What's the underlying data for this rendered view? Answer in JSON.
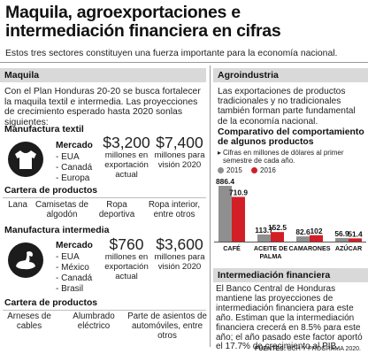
{
  "header": {
    "title": "Maquila, agroexportaciones e intermediación financiera en cifras",
    "subtitle": "Estos tres sectores constituyen una fuerza importante para la economía nacional."
  },
  "maquila": {
    "section_title": "Maquila",
    "intro": "Con el Plan Honduras 20-20 se busca fortalecer la maquila textil e intermedia. Las proyecciones de crecimiento esperado hasta 2020 sonlas siguientes:",
    "textil": {
      "heading": "Manufactura textil",
      "icon": "t-shirt-icon",
      "mercado_label": "Mercado",
      "mercado": [
        "- EUA",
        "- Canadá",
        "- Europa"
      ],
      "stat1_value": "$3,200",
      "stat1_caption": "millones en exportación actual",
      "stat2_value": "$7,400",
      "stat2_caption": "millones para visión 2020",
      "cartera_heading": "Cartera de productos",
      "products": [
        "Lana",
        "Camisetas de algodón",
        "Ropa deportiva",
        "Ropa interior, entre otros"
      ]
    },
    "intermedia": {
      "heading": "Manufactura intermedia",
      "icon": "arm-muscle-icon",
      "mercado_label": "Mercado",
      "mercado": [
        "- EUA",
        "- México",
        "- Canadá",
        "- Brasil"
      ],
      "stat1_value": "$760",
      "stat1_caption": "millones en exportación actual",
      "stat2_value": "$3,600",
      "stat2_caption": "millones para visión 2020",
      "cartera_heading": "Cartera de productos",
      "products": [
        "Arneses de cables",
        "Alumbrado eléctrico",
        "Parte de asientos de automóviles, entre otros"
      ]
    }
  },
  "agro": {
    "section_title": "Agroindustria",
    "intro": "Las exportaciones de productos tradicionales y no tradicionales también forman parte fundamental de la economía nacional."
  },
  "chart_data": {
    "type": "bar",
    "title": "Comparativo del comportamiento de algunos productos",
    "note": "Cifras en millones de dólares al primer semestre de cada año.",
    "categories": [
      "CAFÉ",
      "ACEITE DE PALMA",
      "CAMARONES",
      "AZÚCAR"
    ],
    "series": [
      {
        "name": "2015",
        "color": "#8f8f8f",
        "values": [
          886.4,
          113.7,
          82.6,
          56.9
        ]
      },
      {
        "name": "2016",
        "color": "#d21f26",
        "values": [
          710.9,
          152.5,
          102.0,
          51.4
        ]
      }
    ],
    "value_labels": [
      [
        "886.4",
        "113.7",
        "82.6",
        "56.9"
      ],
      [
        "710.9",
        "152.5",
        "102",
        "51.4"
      ]
    ],
    "ylim": [
      0,
      950
    ],
    "legend": "top-left"
  },
  "financiera": {
    "section_title": "Intermediación financiera",
    "text": "El Banco Central de Honduras mantiene las proyecciones de intermediación financiera para este año. Estiman que la intermediación financiera crecerá en 8.5% para este año; el año pasado este factor aportó el 17.7% de crecimiento al PIB."
  },
  "footer": {
    "source_label": "FUENTES:",
    "source_text": "BCH Y PROGRAMA 2020."
  }
}
